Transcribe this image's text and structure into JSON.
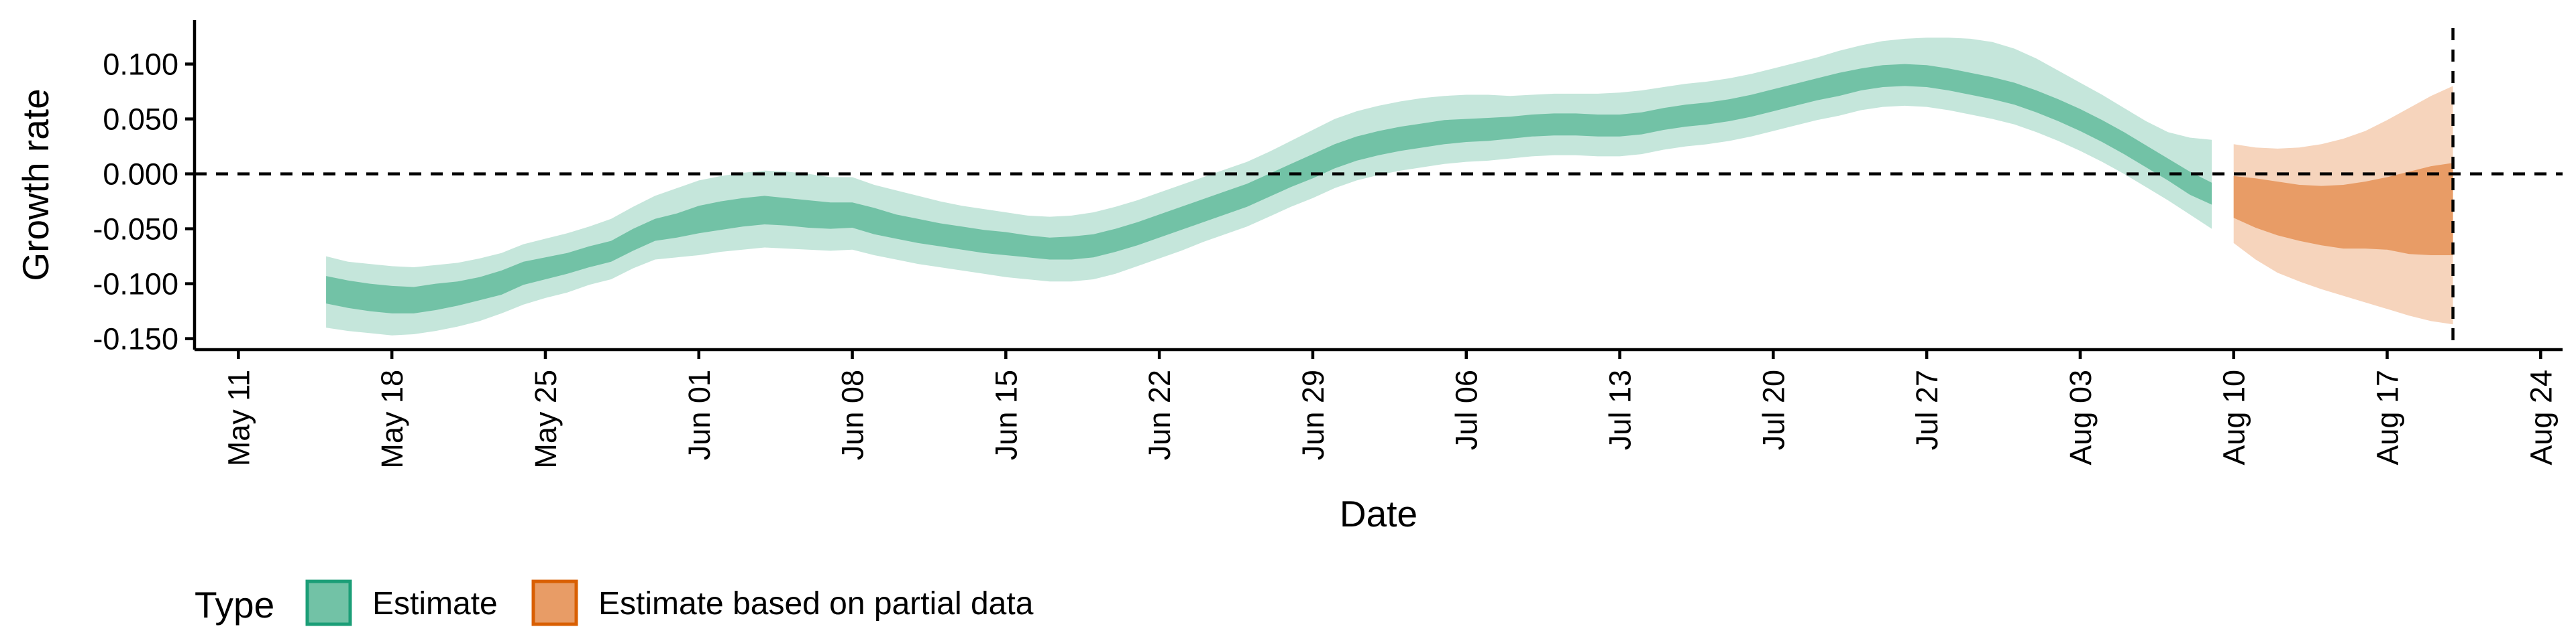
{
  "chart_data": {
    "type": "area",
    "title": "",
    "xlabel": "Date",
    "ylabel": "Growth rate",
    "x_axis": {
      "start": "2020-05-09",
      "end": "2020-08-25",
      "ticks": [
        {
          "date": "2020-05-11",
          "label": "May 11"
        },
        {
          "date": "2020-05-18",
          "label": "May 18"
        },
        {
          "date": "2020-05-25",
          "label": "May 25"
        },
        {
          "date": "2020-06-01",
          "label": "Jun 01"
        },
        {
          "date": "2020-06-08",
          "label": "Jun 08"
        },
        {
          "date": "2020-06-15",
          "label": "Jun 15"
        },
        {
          "date": "2020-06-22",
          "label": "Jun 22"
        },
        {
          "date": "2020-06-29",
          "label": "Jun 29"
        },
        {
          "date": "2020-07-06",
          "label": "Jul 06"
        },
        {
          "date": "2020-07-13",
          "label": "Jul 13"
        },
        {
          "date": "2020-07-20",
          "label": "Jul 20"
        },
        {
          "date": "2020-07-27",
          "label": "Jul 27"
        },
        {
          "date": "2020-08-03",
          "label": "Aug 03"
        },
        {
          "date": "2020-08-10",
          "label": "Aug 10"
        },
        {
          "date": "2020-08-17",
          "label": "Aug 17"
        },
        {
          "date": "2020-08-24",
          "label": "Aug 24"
        }
      ]
    },
    "y_axis": {
      "ylim": [
        -0.16,
        0.14
      ],
      "ticks": [
        -0.15,
        -0.1,
        -0.05,
        0,
        0.05,
        0.1
      ],
      "tick_labels": [
        "-0.150",
        "-0.100",
        "-0.050",
        "0.000",
        "0.050",
        "0.100"
      ]
    },
    "reference_lines": [
      {
        "orientation": "horizontal",
        "y": 0,
        "style": "dashed"
      },
      {
        "orientation": "vertical",
        "x": "2020-08-20",
        "style": "dashed"
      }
    ],
    "grid": false,
    "legend": {
      "title": "Type",
      "position": "bottom-left",
      "entries": [
        {
          "name": "Estimate",
          "color": "#72c2a6",
          "border": "#1b9e77"
        },
        {
          "name": "Estimate based on partial data",
          "color": "#e89c66",
          "border": "#d95f02"
        }
      ]
    },
    "series": [
      {
        "name": "Estimate",
        "inner_color": "#72c2a6",
        "outer_color": "#c5e6db",
        "points": [
          {
            "x": "2020-05-15",
            "lo90": -0.14,
            "lo50": -0.118,
            "hi50": -0.093,
            "hi90": -0.075
          },
          {
            "x": "2020-05-16",
            "lo90": -0.143,
            "lo50": -0.122,
            "hi50": -0.097,
            "hi90": -0.08
          },
          {
            "x": "2020-05-17",
            "lo90": -0.145,
            "lo50": -0.125,
            "hi50": -0.1,
            "hi90": -0.082
          },
          {
            "x": "2020-05-18",
            "lo90": -0.147,
            "lo50": -0.127,
            "hi50": -0.102,
            "hi90": -0.084
          },
          {
            "x": "2020-05-19",
            "lo90": -0.146,
            "lo50": -0.127,
            "hi50": -0.103,
            "hi90": -0.085
          },
          {
            "x": "2020-05-20",
            "lo90": -0.143,
            "lo50": -0.124,
            "hi50": -0.1,
            "hi90": -0.083
          },
          {
            "x": "2020-05-21",
            "lo90": -0.139,
            "lo50": -0.12,
            "hi50": -0.098,
            "hi90": -0.081
          },
          {
            "x": "2020-05-22",
            "lo90": -0.134,
            "lo50": -0.115,
            "hi50": -0.094,
            "hi90": -0.077
          },
          {
            "x": "2020-05-23",
            "lo90": -0.127,
            "lo50": -0.11,
            "hi50": -0.088,
            "hi90": -0.072
          },
          {
            "x": "2020-05-24",
            "lo90": -0.119,
            "lo50": -0.101,
            "hi50": -0.08,
            "hi90": -0.064
          },
          {
            "x": "2020-05-25",
            "lo90": -0.113,
            "lo50": -0.096,
            "hi50": -0.076,
            "hi90": -0.059
          },
          {
            "x": "2020-05-26",
            "lo90": -0.108,
            "lo50": -0.091,
            "hi50": -0.072,
            "hi90": -0.054
          },
          {
            "x": "2020-05-27",
            "lo90": -0.101,
            "lo50": -0.085,
            "hi50": -0.066,
            "hi90": -0.048
          },
          {
            "x": "2020-05-28",
            "lo90": -0.096,
            "lo50": -0.08,
            "hi50": -0.061,
            "hi90": -0.041
          },
          {
            "x": "2020-05-29",
            "lo90": -0.086,
            "lo50": -0.07,
            "hi50": -0.05,
            "hi90": -0.03
          },
          {
            "x": "2020-05-30",
            "lo90": -0.078,
            "lo50": -0.061,
            "hi50": -0.041,
            "hi90": -0.02
          },
          {
            "x": "2020-05-31",
            "lo90": -0.076,
            "lo50": -0.058,
            "hi50": -0.036,
            "hi90": -0.013
          },
          {
            "x": "2020-06-01",
            "lo90": -0.074,
            "lo50": -0.054,
            "hi50": -0.029,
            "hi90": -0.006
          },
          {
            "x": "2020-06-02",
            "lo90": -0.071,
            "lo50": -0.051,
            "hi50": -0.025,
            "hi90": -0.002
          },
          {
            "x": "2020-06-03",
            "lo90": -0.069,
            "lo50": -0.048,
            "hi50": -0.022,
            "hi90": 0.001
          },
          {
            "x": "2020-06-04",
            "lo90": -0.067,
            "lo50": -0.046,
            "hi50": -0.02,
            "hi90": 0.003
          },
          {
            "x": "2020-06-05",
            "lo90": -0.068,
            "lo50": -0.047,
            "hi50": -0.022,
            "hi90": 0.002
          },
          {
            "x": "2020-06-06",
            "lo90": -0.069,
            "lo50": -0.049,
            "hi50": -0.024,
            "hi90": 0.0
          },
          {
            "x": "2020-06-07",
            "lo90": -0.07,
            "lo50": -0.05,
            "hi50": -0.026,
            "hi90": -0.003
          },
          {
            "x": "2020-06-08",
            "lo90": -0.069,
            "lo50": -0.049,
            "hi50": -0.026,
            "hi90": -0.003
          },
          {
            "x": "2020-06-09",
            "lo90": -0.074,
            "lo50": -0.055,
            "hi50": -0.031,
            "hi90": -0.01
          },
          {
            "x": "2020-06-10",
            "lo90": -0.078,
            "lo50": -0.059,
            "hi50": -0.037,
            "hi90": -0.015
          },
          {
            "x": "2020-06-11",
            "lo90": -0.082,
            "lo50": -0.063,
            "hi50": -0.041,
            "hi90": -0.02
          },
          {
            "x": "2020-06-12",
            "lo90": -0.085,
            "lo50": -0.066,
            "hi50": -0.045,
            "hi90": -0.025
          },
          {
            "x": "2020-06-13",
            "lo90": -0.088,
            "lo50": -0.069,
            "hi50": -0.048,
            "hi90": -0.029
          },
          {
            "x": "2020-06-14",
            "lo90": -0.091,
            "lo50": -0.072,
            "hi50": -0.051,
            "hi90": -0.032
          },
          {
            "x": "2020-06-15",
            "lo90": -0.094,
            "lo50": -0.074,
            "hi50": -0.053,
            "hi90": -0.035
          },
          {
            "x": "2020-06-16",
            "lo90": -0.096,
            "lo50": -0.076,
            "hi50": -0.056,
            "hi90": -0.038
          },
          {
            "x": "2020-06-17",
            "lo90": -0.098,
            "lo50": -0.078,
            "hi50": -0.058,
            "hi90": -0.039
          },
          {
            "x": "2020-06-18",
            "lo90": -0.098,
            "lo50": -0.078,
            "hi50": -0.057,
            "hi90": -0.038
          },
          {
            "x": "2020-06-19",
            "lo90": -0.096,
            "lo50": -0.076,
            "hi50": -0.055,
            "hi90": -0.035
          },
          {
            "x": "2020-06-20",
            "lo90": -0.091,
            "lo50": -0.071,
            "hi50": -0.05,
            "hi90": -0.03
          },
          {
            "x": "2020-06-21",
            "lo90": -0.084,
            "lo50": -0.065,
            "hi50": -0.044,
            "hi90": -0.024
          },
          {
            "x": "2020-06-22",
            "lo90": -0.077,
            "lo50": -0.058,
            "hi50": -0.037,
            "hi90": -0.017
          },
          {
            "x": "2020-06-23",
            "lo90": -0.07,
            "lo50": -0.051,
            "hi50": -0.03,
            "hi90": -0.01
          },
          {
            "x": "2020-06-24",
            "lo90": -0.062,
            "lo50": -0.044,
            "hi50": -0.023,
            "hi90": -0.003
          },
          {
            "x": "2020-06-25",
            "lo90": -0.055,
            "lo50": -0.037,
            "hi50": -0.016,
            "hi90": 0.004
          },
          {
            "x": "2020-06-26",
            "lo90": -0.048,
            "lo50": -0.03,
            "hi50": -0.009,
            "hi90": 0.011
          },
          {
            "x": "2020-06-27",
            "lo90": -0.039,
            "lo50": -0.021,
            "hi50": 0.0,
            "hi90": 0.02
          },
          {
            "x": "2020-06-28",
            "lo90": -0.03,
            "lo50": -0.012,
            "hi50": 0.009,
            "hi90": 0.03
          },
          {
            "x": "2020-06-29",
            "lo90": -0.022,
            "lo50": -0.004,
            "hi50": 0.018,
            "hi90": 0.04
          },
          {
            "x": "2020-06-30",
            "lo90": -0.013,
            "lo50": 0.005,
            "hi50": 0.027,
            "hi90": 0.05
          },
          {
            "x": "2020-07-01",
            "lo90": -0.006,
            "lo50": 0.012,
            "hi50": 0.034,
            "hi90": 0.057
          },
          {
            "x": "2020-07-02",
            "lo90": -0.001,
            "lo50": 0.017,
            "hi50": 0.039,
            "hi90": 0.062
          },
          {
            "x": "2020-07-03",
            "lo90": 0.003,
            "lo50": 0.021,
            "hi50": 0.043,
            "hi90": 0.066
          },
          {
            "x": "2020-07-04",
            "lo90": 0.006,
            "lo50": 0.024,
            "hi50": 0.046,
            "hi90": 0.069
          },
          {
            "x": "2020-07-05",
            "lo90": 0.009,
            "lo50": 0.027,
            "hi50": 0.049,
            "hi90": 0.071
          },
          {
            "x": "2020-07-06",
            "lo90": 0.011,
            "lo50": 0.029,
            "hi50": 0.05,
            "hi90": 0.072
          },
          {
            "x": "2020-07-07",
            "lo90": 0.012,
            "lo50": 0.03,
            "hi50": 0.051,
            "hi90": 0.072
          },
          {
            "x": "2020-07-08",
            "lo90": 0.014,
            "lo50": 0.032,
            "hi50": 0.052,
            "hi90": 0.071
          },
          {
            "x": "2020-07-09",
            "lo90": 0.016,
            "lo50": 0.034,
            "hi50": 0.054,
            "hi90": 0.072
          },
          {
            "x": "2020-07-10",
            "lo90": 0.017,
            "lo50": 0.035,
            "hi50": 0.055,
            "hi90": 0.073
          },
          {
            "x": "2020-07-11",
            "lo90": 0.017,
            "lo50": 0.035,
            "hi50": 0.055,
            "hi90": 0.073
          },
          {
            "x": "2020-07-12",
            "lo90": 0.016,
            "lo50": 0.034,
            "hi50": 0.054,
            "hi90": 0.073
          },
          {
            "x": "2020-07-13",
            "lo90": 0.016,
            "lo50": 0.034,
            "hi50": 0.054,
            "hi90": 0.074
          },
          {
            "x": "2020-07-14",
            "lo90": 0.018,
            "lo50": 0.036,
            "hi50": 0.056,
            "hi90": 0.076
          },
          {
            "x": "2020-07-15",
            "lo90": 0.022,
            "lo50": 0.04,
            "hi50": 0.06,
            "hi90": 0.079
          },
          {
            "x": "2020-07-16",
            "lo90": 0.025,
            "lo50": 0.043,
            "hi50": 0.063,
            "hi90": 0.082
          },
          {
            "x": "2020-07-17",
            "lo90": 0.027,
            "lo50": 0.045,
            "hi50": 0.065,
            "hi90": 0.084
          },
          {
            "x": "2020-07-18",
            "lo90": 0.03,
            "lo50": 0.048,
            "hi50": 0.068,
            "hi90": 0.087
          },
          {
            "x": "2020-07-19",
            "lo90": 0.034,
            "lo50": 0.052,
            "hi50": 0.072,
            "hi90": 0.091
          },
          {
            "x": "2020-07-20",
            "lo90": 0.039,
            "lo50": 0.057,
            "hi50": 0.077,
            "hi90": 0.096
          },
          {
            "x": "2020-07-21",
            "lo90": 0.044,
            "lo50": 0.062,
            "hi50": 0.082,
            "hi90": 0.101
          },
          {
            "x": "2020-07-22",
            "lo90": 0.049,
            "lo50": 0.067,
            "hi50": 0.087,
            "hi90": 0.106
          },
          {
            "x": "2020-07-23",
            "lo90": 0.053,
            "lo50": 0.071,
            "hi50": 0.092,
            "hi90": 0.112
          },
          {
            "x": "2020-07-24",
            "lo90": 0.058,
            "lo50": 0.076,
            "hi50": 0.096,
            "hi90": 0.117
          },
          {
            "x": "2020-07-25",
            "lo90": 0.061,
            "lo50": 0.079,
            "hi50": 0.099,
            "hi90": 0.121
          },
          {
            "x": "2020-07-26",
            "lo90": 0.062,
            "lo50": 0.08,
            "hi50": 0.1,
            "hi90": 0.123
          },
          {
            "x": "2020-07-27",
            "lo90": 0.061,
            "lo50": 0.079,
            "hi50": 0.099,
            "hi90": 0.124
          },
          {
            "x": "2020-07-28",
            "lo90": 0.058,
            "lo50": 0.076,
            "hi50": 0.096,
            "hi90": 0.124
          },
          {
            "x": "2020-07-29",
            "lo90": 0.054,
            "lo50": 0.072,
            "hi50": 0.092,
            "hi90": 0.123
          },
          {
            "x": "2020-07-30",
            "lo90": 0.05,
            "lo50": 0.068,
            "hi50": 0.088,
            "hi90": 0.12
          },
          {
            "x": "2020-07-31",
            "lo90": 0.045,
            "lo50": 0.063,
            "hi50": 0.083,
            "hi90": 0.114
          },
          {
            "x": "2020-08-01",
            "lo90": 0.038,
            "lo50": 0.056,
            "hi50": 0.076,
            "hi90": 0.105
          },
          {
            "x": "2020-08-02",
            "lo90": 0.03,
            "lo50": 0.048,
            "hi50": 0.068,
            "hi90": 0.094
          },
          {
            "x": "2020-08-03",
            "lo90": 0.021,
            "lo50": 0.039,
            "hi50": 0.059,
            "hi90": 0.083
          },
          {
            "x": "2020-08-04",
            "lo90": 0.011,
            "lo50": 0.029,
            "hi50": 0.049,
            "hi90": 0.072
          },
          {
            "x": "2020-08-05",
            "lo90": 0.0,
            "lo50": 0.018,
            "hi50": 0.038,
            "hi90": 0.06
          },
          {
            "x": "2020-08-06",
            "lo90": -0.012,
            "lo50": 0.006,
            "hi50": 0.026,
            "hi90": 0.048
          },
          {
            "x": "2020-08-07",
            "lo90": -0.024,
            "lo50": -0.006,
            "hi50": 0.014,
            "hi90": 0.038
          },
          {
            "x": "2020-08-08",
            "lo90": -0.037,
            "lo50": -0.019,
            "hi50": 0.002,
            "hi90": 0.033
          },
          {
            "x": "2020-08-09",
            "lo90": -0.05,
            "lo50": -0.028,
            "hi50": -0.008,
            "hi90": 0.031
          }
        ]
      },
      {
        "name": "Estimate based on partial data",
        "inner_color": "#e89c66",
        "outer_color": "#f6d4bc",
        "points": [
          {
            "x": "2020-08-10",
            "lo90": -0.063,
            "lo50": -0.04,
            "hi50": -0.002,
            "hi90": 0.027
          },
          {
            "x": "2020-08-11",
            "lo90": -0.078,
            "lo50": -0.049,
            "hi50": -0.004,
            "hi90": 0.024
          },
          {
            "x": "2020-08-12",
            "lo90": -0.09,
            "lo50": -0.056,
            "hi50": -0.007,
            "hi90": 0.023
          },
          {
            "x": "2020-08-13",
            "lo90": -0.098,
            "lo50": -0.061,
            "hi50": -0.01,
            "hi90": 0.024
          },
          {
            "x": "2020-08-14",
            "lo90": -0.105,
            "lo50": -0.065,
            "hi50": -0.011,
            "hi90": 0.027
          },
          {
            "x": "2020-08-15",
            "lo90": -0.111,
            "lo50": -0.068,
            "hi50": -0.01,
            "hi90": 0.032
          },
          {
            "x": "2020-08-16",
            "lo90": -0.117,
            "lo50": -0.068,
            "hi50": -0.007,
            "hi90": 0.039
          },
          {
            "x": "2020-08-17",
            "lo90": -0.123,
            "lo50": -0.069,
            "hi50": -0.003,
            "hi90": 0.049
          },
          {
            "x": "2020-08-18",
            "lo90": -0.129,
            "lo50": -0.073,
            "hi50": 0.002,
            "hi90": 0.06
          },
          {
            "x": "2020-08-19",
            "lo90": -0.134,
            "lo50": -0.074,
            "hi50": 0.007,
            "hi90": 0.071
          },
          {
            "x": "2020-08-20",
            "lo90": -0.137,
            "lo50": -0.074,
            "hi50": 0.01,
            "hi90": 0.08
          }
        ]
      }
    ]
  }
}
